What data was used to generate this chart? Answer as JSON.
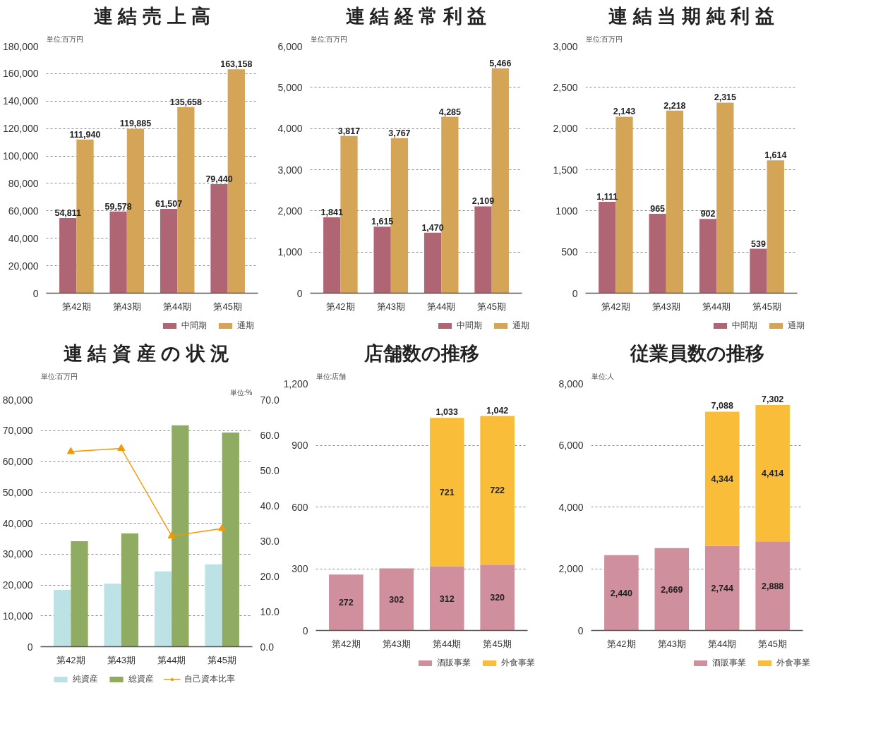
{
  "chart_data": [
    {
      "type": "bar",
      "title": "連 結 売 上 高",
      "ylabel": "単位:百万円",
      "categories": [
        "第42期",
        "第43期",
        "第44期",
        "第45期"
      ],
      "ylim": [
        0,
        180000
      ],
      "yticks": [
        0,
        {
          "value": 20000,
          "label": "20,000"
        },
        {
          "value": 40000,
          "label": "40,000"
        },
        {
          "value": 60000,
          "label": "60,000"
        },
        {
          "value": 80000,
          "label": "80,000"
        },
        {
          "value": 100000,
          "label": "100,000"
        },
        {
          "value": 120000,
          "label": "120,000"
        },
        {
          "value": 140000,
          "label": "140,000"
        },
        {
          "value": 160000,
          "label": "160,000"
        },
        {
          "value": 180000,
          "label": "180,000"
        }
      ],
      "grid": "y",
      "legend": "bottom right",
      "series": [
        {
          "name": "中間期",
          "color": "#b06574",
          "values": [
            54811,
            59578,
            61507,
            79440
          ],
          "value_labels": [
            "54,811",
            "59,578",
            "61,507",
            "79,440"
          ]
        },
        {
          "name": "通期",
          "color": "#d4a457",
          "values": [
            111940,
            119885,
            135658,
            163158
          ],
          "value_labels": [
            "111,940",
            "119,885",
            "135,658",
            "163,158"
          ]
        }
      ]
    },
    {
      "type": "bar",
      "title": "連 結 経 常 利 益",
      "ylabel": "単位:百万円",
      "categories": [
        "第42期",
        "第43期",
        "第44期",
        "第45期"
      ],
      "ylim": [
        0,
        6000
      ],
      "yticks": [
        0,
        {
          "value": 1000,
          "label": "1,000"
        },
        {
          "value": 2000,
          "label": "2,000"
        },
        {
          "value": 3000,
          "label": "3,000"
        },
        {
          "value": 4000,
          "label": "4,000"
        },
        {
          "value": 5000,
          "label": "5,000"
        },
        {
          "value": 6000,
          "label": "6,000"
        }
      ],
      "grid": "y",
      "legend": "bottom right",
      "series": [
        {
          "name": "中間期",
          "color": "#b06574",
          "values": [
            1841,
            1615,
            1470,
            2109
          ],
          "value_labels": [
            "1,841",
            "1,615",
            "1,470",
            "2,109"
          ]
        },
        {
          "name": "通期",
          "color": "#d4a457",
          "values": [
            3817,
            3767,
            4285,
            5466
          ],
          "value_labels": [
            "3,817",
            "3,767",
            "4,285",
            "5,466"
          ]
        }
      ]
    },
    {
      "type": "bar",
      "title": "連 結 当 期 純 利 益",
      "ylabel": "単位:百万円",
      "categories": [
        "第42期",
        "第43期",
        "第44期",
        "第45期"
      ],
      "ylim": [
        0,
        3000
      ],
      "yticks": [
        0,
        500,
        1000,
        {
          "value": 1500,
          "label": "1,500"
        },
        {
          "value": 2000,
          "label": "2,000"
        },
        {
          "value": 2500,
          "label": "2,500"
        },
        {
          "value": 3000,
          "label": "3,000"
        }
      ],
      "grid": "y",
      "legend": "bottom right",
      "series": [
        {
          "name": "中間期",
          "color": "#b06574",
          "values": [
            1111,
            965,
            902,
            539
          ],
          "value_labels": [
            "1,111",
            "965",
            "902",
            "539"
          ]
        },
        {
          "name": "通期",
          "color": "#d4a457",
          "values": [
            2143,
            2218,
            2315,
            1614
          ],
          "value_labels": [
            "2,143",
            "2,218",
            "2,315",
            "1,614"
          ]
        }
      ]
    },
    {
      "type": "bar",
      "title": "連 結 資 産 の 状 況",
      "ylabel": "単位:百万円",
      "y2label": "単位:%",
      "categories": [
        "第42期",
        "第43期",
        "第44期",
        "第45期"
      ],
      "ylim": [
        0,
        80000
      ],
      "yticks": [
        0,
        {
          "value": 10000,
          "label": "10,000"
        },
        {
          "value": 20000,
          "label": "20,000"
        },
        {
          "value": 30000,
          "label": "30,000"
        },
        {
          "value": 40000,
          "label": "40,000"
        },
        {
          "value": 50000,
          "label": "50,000"
        },
        {
          "value": 60000,
          "label": "60,000"
        },
        {
          "value": 70000,
          "label": "70,000"
        },
        {
          "value": 80000,
          "label": "80,000"
        }
      ],
      "y2lim": [
        0,
        70
      ],
      "y2ticks": [
        {
          "value": 0,
          "label": "0.0"
        },
        {
          "value": 10,
          "label": "10.0"
        },
        {
          "value": 20,
          "label": "20.0"
        },
        {
          "value": 30,
          "label": "30.0"
        },
        {
          "value": 40,
          "label": "40.0"
        },
        {
          "value": 50,
          "label": "50.0"
        },
        {
          "value": 60,
          "label": "60.0"
        },
        {
          "value": 70,
          "label": "70.0"
        }
      ],
      "grid": "y",
      "legend": "bottom",
      "series": [
        {
          "name": "純資産",
          "color": "#bde2e6",
          "values": [
            18400,
            20400,
            24400,
            26700
          ]
        },
        {
          "name": "総資産",
          "color": "#8fac62",
          "values": [
            34200,
            36700,
            71700,
            69400
          ]
        },
        {
          "name": "自己資本比率",
          "type": "line",
          "axis": "y2",
          "color": "#f39800",
          "marker": "triangle",
          "values": [
            55.3,
            56.2,
            31.4,
            33.5
          ]
        }
      ]
    },
    {
      "type": "bar",
      "title": "店舗数の推移",
      "ylabel": "単位:店舗",
      "categories": [
        "第42期",
        "第43期",
        "第44期",
        "第45期"
      ],
      "ylim": [
        0,
        1200
      ],
      "yticks": [
        0,
        300,
        600,
        900,
        {
          "value": 1200,
          "label": "1,200"
        }
      ],
      "grid": "y",
      "legend": "bottom right",
      "stacked": true,
      "totals": [
        null,
        null,
        "1,033",
        "1,042"
      ],
      "series": [
        {
          "name": "酒販事業",
          "color": "#d08f9c",
          "values": [
            272,
            302,
            312,
            320
          ],
          "value_labels": [
            "272",
            "302",
            "312",
            "320"
          ]
        },
        {
          "name": "外食事業",
          "color": "#f9bd3a",
          "values": [
            null,
            null,
            721,
            722
          ],
          "value_labels": [
            null,
            null,
            "721",
            "722"
          ]
        }
      ]
    },
    {
      "type": "bar",
      "title": "従業員数の推移",
      "ylabel": "単位:人",
      "categories": [
        "第42期",
        "第43期",
        "第44期",
        "第45期"
      ],
      "ylim": [
        0,
        8000
      ],
      "yticks": [
        0,
        {
          "value": 2000,
          "label": "2,000"
        },
        {
          "value": 4000,
          "label": "4,000"
        },
        {
          "value": 6000,
          "label": "6,000"
        },
        {
          "value": 8000,
          "label": "8,000"
        }
      ],
      "grid": "y",
      "legend": "bottom right",
      "stacked": true,
      "totals": [
        null,
        null,
        "7,088",
        "7,302"
      ],
      "series": [
        {
          "name": "酒販事業",
          "color": "#d08f9c",
          "values": [
            2440,
            2669,
            2744,
            2888
          ],
          "value_labels": [
            "2,440",
            "2,669",
            "2,744",
            "2,888"
          ]
        },
        {
          "name": "外食事業",
          "color": "#f9bd3a",
          "values": [
            null,
            null,
            4344,
            4414
          ],
          "value_labels": [
            null,
            null,
            "4,344",
            "4,414"
          ]
        }
      ]
    }
  ]
}
